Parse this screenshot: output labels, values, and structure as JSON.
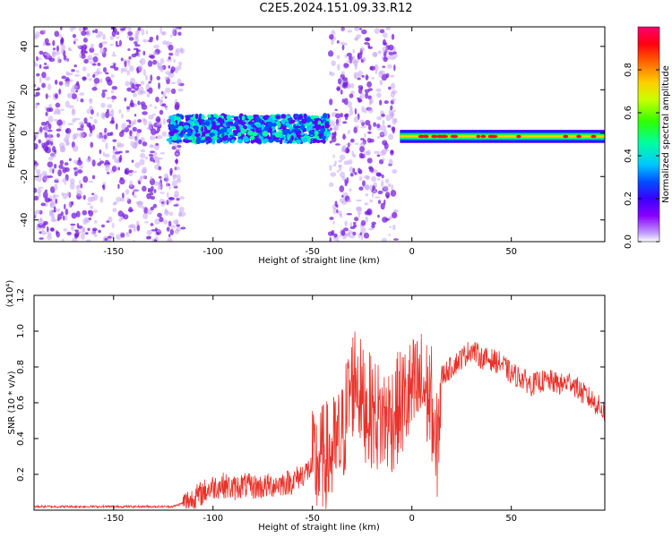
{
  "title": "C2E5.2024.151.09.33.R12",
  "colors": {
    "snr_line": "#e8322a",
    "spectrum_scatter": "#7a1fe0",
    "spectrum_scatter_light": "#c9a8f5",
    "colorbar": [
      "#8b00ff",
      "#3a00ff",
      "#0040ff",
      "#00c8ff",
      "#00ff80",
      "#40ff00",
      "#ffe000",
      "#ff6000",
      "#ff0000",
      "#ff0060"
    ]
  },
  "chart_data": [
    {
      "type": "heatmap",
      "title": "",
      "xlabel": "Height of straight line (km)",
      "ylabel": "Frequency (Hz)",
      "xlim": [
        -190,
        97
      ],
      "ylim": [
        -50,
        49
      ],
      "xticks": [
        -150,
        -100,
        -50,
        0,
        50
      ],
      "yticks": [
        -40,
        -20,
        0,
        20,
        40
      ],
      "colorbar": {
        "label": "Normalized spectral amplitude",
        "range": [
          0.0,
          1.0
        ],
        "ticks": [
          "0.0",
          "0.2",
          "0.4",
          "0.6",
          "0.8"
        ]
      },
      "regions": [
        {
          "x_range": [
            -190,
            -115
          ],
          "kind": "noise",
          "freq_range": [
            -50,
            49
          ]
        },
        {
          "x_range": [
            -122,
            -42
          ],
          "kind": "band",
          "center_hz": 2,
          "width_hz": 12,
          "peak_amplitude": 0.45
        },
        {
          "x_range": [
            -41,
            -8
          ],
          "kind": "noise",
          "freq_range": [
            -50,
            49
          ]
        },
        {
          "x_range": [
            -6,
            97
          ],
          "kind": "carrier",
          "center_hz": -1.5,
          "width_hz": 6,
          "peak_amplitude": 0.9
        }
      ]
    },
    {
      "type": "line",
      "title": "",
      "xlabel": "Height of straight line (km)",
      "ylabel": "SNR (10 * v/v)",
      "y_multiplier": "(x10⁴)",
      "xlim": [
        -190,
        97
      ],
      "ylim": [
        0,
        1.2
      ],
      "xticks": [
        -150,
        -100,
        -50,
        0,
        50
      ],
      "yticks": [
        0.2,
        0.4,
        0.6,
        0.8,
        1.0,
        1.2
      ],
      "series": [
        {
          "x": [
            -190,
            -170,
            -150,
            -130,
            -120,
            -115,
            -110,
            -105,
            -100,
            -95,
            -90,
            -85,
            -80,
            -75,
            -70,
            -65,
            -60,
            -55,
            -50,
            -45,
            -40,
            -35,
            -32,
            -28,
            -25,
            -20,
            -15,
            -10,
            -5,
            0,
            5,
            10,
            12,
            15,
            20,
            25,
            30,
            35,
            40,
            45,
            50,
            55,
            60,
            65,
            70,
            75,
            80,
            85,
            90,
            97
          ],
          "values": [
            0.02,
            0.02,
            0.02,
            0.02,
            0.02,
            0.04,
            0.06,
            0.1,
            0.13,
            0.14,
            0.12,
            0.14,
            0.13,
            0.13,
            0.14,
            0.15,
            0.16,
            0.2,
            0.24,
            0.28,
            0.32,
            0.4,
            0.62,
            0.78,
            0.6,
            0.55,
            0.5,
            0.52,
            0.6,
            0.65,
            0.7,
            0.6,
            0.25,
            0.75,
            0.8,
            0.85,
            0.9,
            0.85,
            0.84,
            0.82,
            0.76,
            0.74,
            0.7,
            0.72,
            0.72,
            0.7,
            0.72,
            0.66,
            0.62,
            0.55
          ]
        }
      ]
    }
  ]
}
